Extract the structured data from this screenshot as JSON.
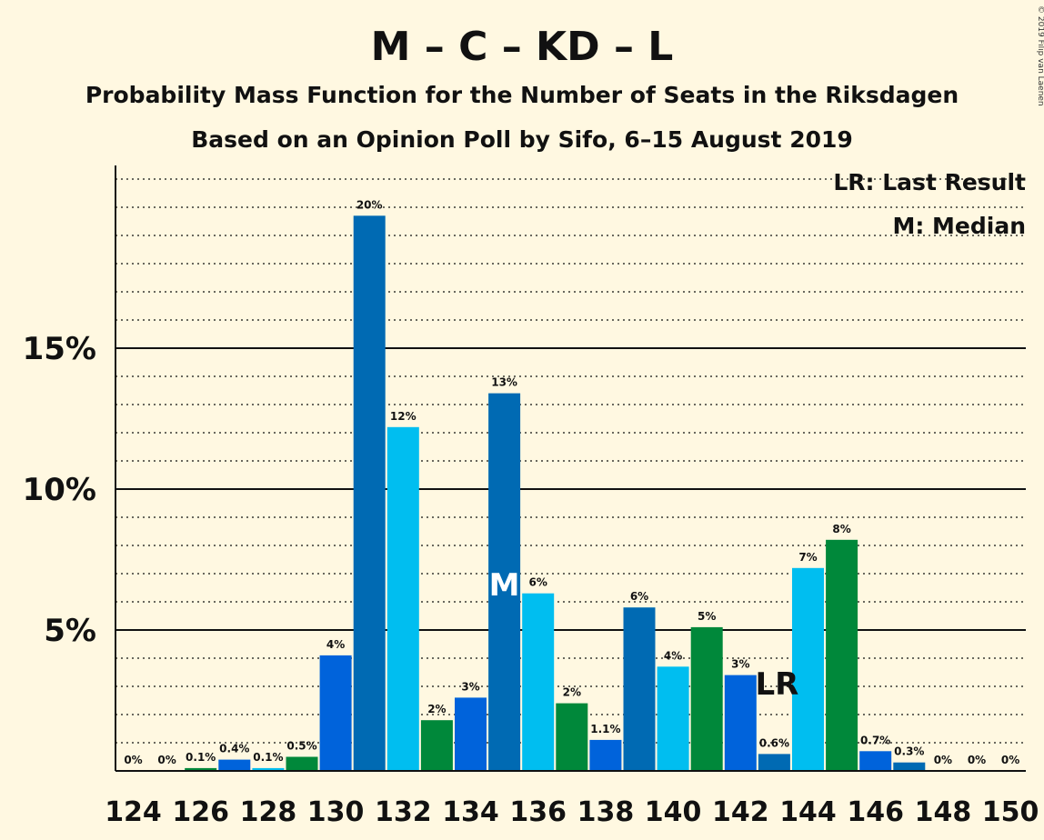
{
  "title": "M – C – KD – L",
  "subtitle1": "Probability Mass Function for the Number of Seats in the Riksdagen",
  "subtitle2": "Based on an Opinion Poll by Sifo, 6–15 August 2019",
  "copyright": "© 2019 Filip van Laenen",
  "legend": {
    "last_result": "LR: Last Result",
    "median": "M: Median"
  },
  "markers": {
    "median_text": "M",
    "median_seat": 135,
    "last_result_text": "LR",
    "last_result_seat": 143
  },
  "colors": {
    "background": "#FFF8E1",
    "blue_dark": "#006AB3",
    "blue_mid": "#0063DB",
    "blue_light": "#00BEF0",
    "green": "#00883A"
  },
  "chart_data": {
    "type": "bar",
    "x": [
      124,
      125,
      126,
      127,
      128,
      129,
      130,
      131,
      132,
      133,
      134,
      135,
      136,
      137,
      138,
      139,
      140,
      141,
      142,
      143,
      144,
      145,
      146,
      147,
      148,
      149,
      150
    ],
    "values": [
      0,
      0,
      0.1,
      0.4,
      0.1,
      0.5,
      4.1,
      19.7,
      12.2,
      1.8,
      2.6,
      13.4,
      6.3,
      2.4,
      1.1,
      5.8,
      3.7,
      5.1,
      3.4,
      0.6,
      7.2,
      8.2,
      0.7,
      0.3,
      0,
      0,
      0
    ],
    "data_labels": [
      "0%",
      "0%",
      "0.1%",
      "0.4%",
      "0.1%",
      "0.5%",
      "4%",
      "20%",
      "12%",
      "2%",
      "3%",
      "13%",
      "6%",
      "2%",
      "1.1%",
      "6%",
      "4%",
      "5%",
      "3%",
      "0.6%",
      "7%",
      "8%",
      "0.7%",
      "0.3%",
      "0%",
      "0%",
      "0%"
    ],
    "bar_colors": [
      "#006AB3",
      "#00BEF0",
      "#00883A",
      "#0063DB",
      "#00BEF0",
      "#00883A",
      "#0063DB",
      "#006AB3",
      "#00BEF0",
      "#00883A",
      "#0063DB",
      "#006AB3",
      "#00BEF0",
      "#00883A",
      "#0063DB",
      "#006AB3",
      "#00BEF0",
      "#00883A",
      "#0063DB",
      "#006AB3",
      "#00BEF0",
      "#00883A",
      "#0063DB",
      "#006AB3",
      "#00BEF0",
      "#00883A",
      "#0063DB"
    ],
    "x_tick_labels": [
      "124",
      "126",
      "128",
      "130",
      "132",
      "134",
      "136",
      "138",
      "140",
      "142",
      "144",
      "146",
      "148",
      "150"
    ],
    "y_ticks": [
      5,
      10,
      15
    ],
    "y_tick_labels": [
      "5%",
      "10%",
      "15%"
    ],
    "ylim": [
      0,
      21.5
    ],
    "minor_grid_step": 1,
    "xlabel": "",
    "ylabel": ""
  }
}
